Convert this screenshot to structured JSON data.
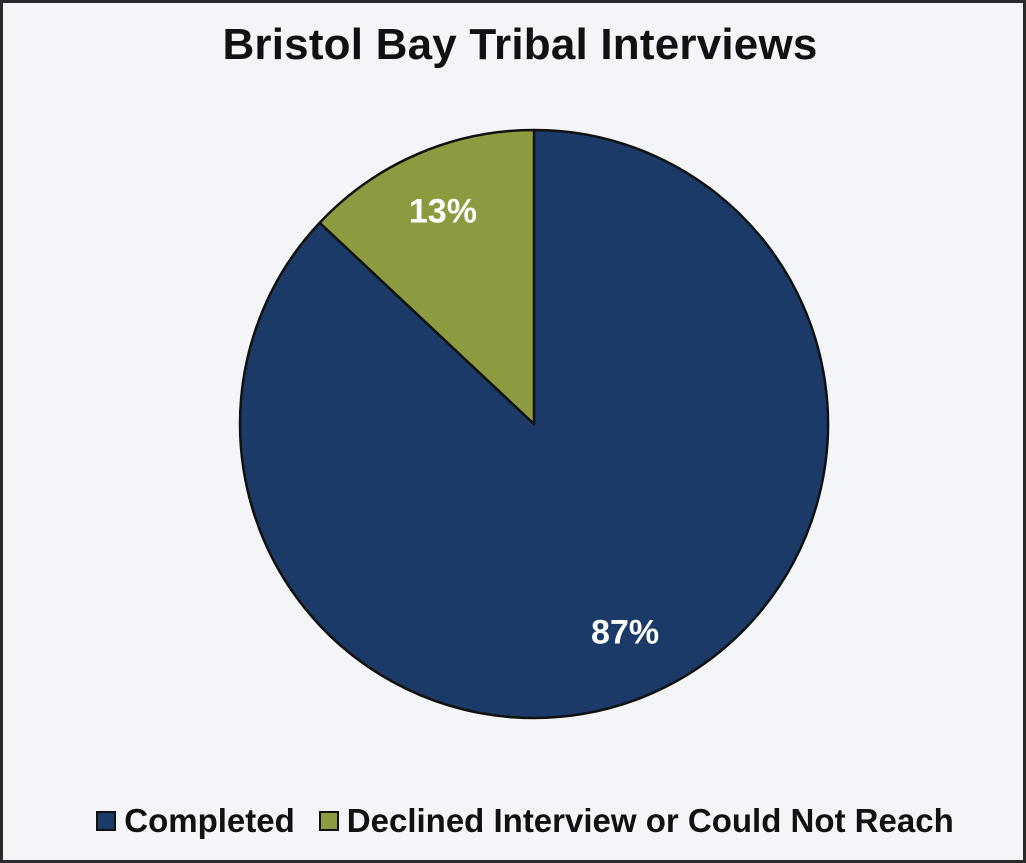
{
  "chart_data": {
    "type": "pie",
    "title": "Bristol Bay Tribal Interviews",
    "start_angle_deg": 0,
    "slices": [
      {
        "label": "Completed",
        "value": 87,
        "data_label": "87%",
        "color": "#1b3a68"
      },
      {
        "label": "Declined Interview or Could Not Reach",
        "value": 13,
        "data_label": "13%",
        "color": "#8c9a40"
      }
    ],
    "legend_position": "bottom"
  }
}
